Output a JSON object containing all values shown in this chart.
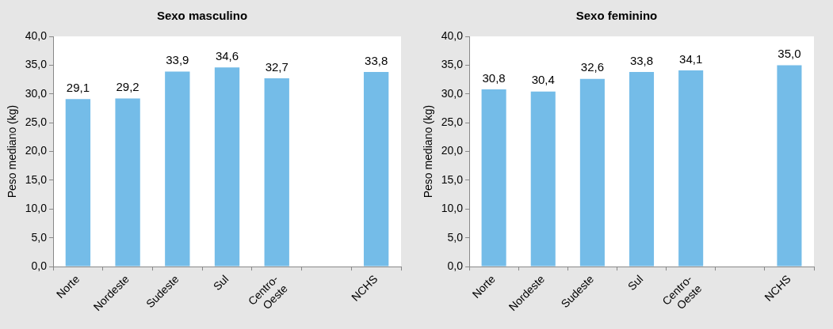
{
  "chart_data": [
    {
      "type": "bar",
      "title": "Sexo masculino",
      "ylabel": "Peso mediano (kg)",
      "categories": [
        "Norte",
        "Nordeste",
        "Sudeste",
        "Sul",
        "Centro-Oeste",
        null,
        "NCHS"
      ],
      "values": [
        29.1,
        29.2,
        33.9,
        34.6,
        32.7,
        null,
        33.8
      ],
      "value_labels": [
        "29,1",
        "29,2",
        "33,9",
        "34,6",
        "32,7",
        null,
        "33,8"
      ],
      "color": "#74bce8",
      "ylim": [
        0,
        40
      ],
      "yticks": [
        {
          "value": 0,
          "label": "0,0"
        },
        {
          "value": 5,
          "label": "5,0"
        },
        {
          "value": 10,
          "label": "10,0"
        },
        {
          "value": 15,
          "label": "15,0"
        },
        {
          "value": 20,
          "label": "20,0"
        },
        {
          "value": 25,
          "label": "25,0"
        },
        {
          "value": 30,
          "label": "30,0"
        },
        {
          "value": 35,
          "label": "35,0"
        },
        {
          "value": 40,
          "label": "40,0"
        }
      ],
      "grid": false,
      "legend": false
    },
    {
      "type": "bar",
      "title": "Sexo feminino",
      "ylabel": "Peso mediano (kg)",
      "categories": [
        "Norte",
        "Nordeste",
        "Sudeste",
        "Sul",
        "Centro-Oeste",
        null,
        "NCHS"
      ],
      "values": [
        30.8,
        30.4,
        32.6,
        33.8,
        34.1,
        null,
        35.0
      ],
      "value_labels": [
        "30,8",
        "30,4",
        "32,6",
        "33,8",
        "34,1",
        null,
        "35,0"
      ],
      "color": "#74bce8",
      "ylim": [
        0,
        40
      ],
      "yticks": [
        {
          "value": 0,
          "label": "0,0"
        },
        {
          "value": 5,
          "label": "5,0"
        },
        {
          "value": 10,
          "label": "10,0"
        },
        {
          "value": 15,
          "label": "15,0"
        },
        {
          "value": 20,
          "label": "20,0"
        },
        {
          "value": 25,
          "label": "25,0"
        },
        {
          "value": 30,
          "label": "30,0"
        },
        {
          "value": 35,
          "label": "35,0"
        },
        {
          "value": 40,
          "label": "40,0"
        }
      ],
      "grid": false,
      "legend": false
    }
  ]
}
